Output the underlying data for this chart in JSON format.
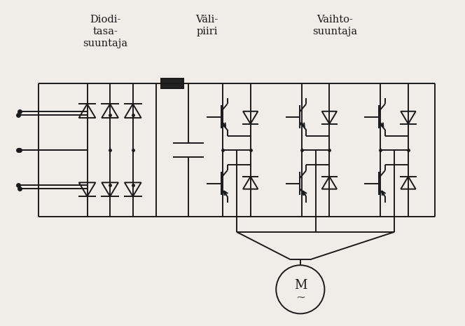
{
  "bg_color": "#f0ede8",
  "line_color": "#1a1a1a",
  "title_color": "#1a1a1a",
  "labels": {
    "diode_rect": "Diodi-\ntasa-\nsuuntaja",
    "dc_link": "Väli-\npiiri",
    "inverter": "Vaihto-\nsuuntaja"
  },
  "font_size": 10.5
}
